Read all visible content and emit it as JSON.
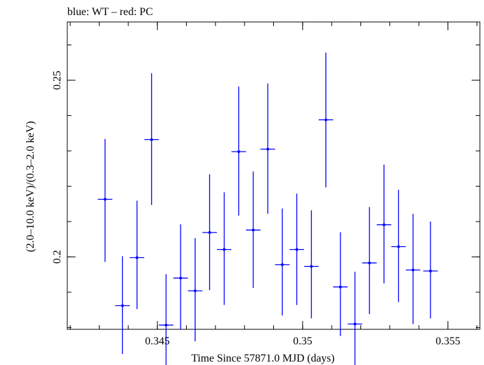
{
  "chart_data": {
    "type": "scatter",
    "title": "blue: WT – red: PC",
    "xlabel": "Time Since 57871.0 MJD (days)",
    "ylabel": "(2.0–10.0 keV)/(0.3–2.0 keV)",
    "xlim": [
      0.3419,
      0.3561
    ],
    "ylim": [
      0.1795,
      0.2665
    ],
    "xticks": [
      {
        "value": 0.345,
        "label": "0.345"
      },
      {
        "value": 0.35,
        "label": "0.35"
      },
      {
        "value": 0.355,
        "label": "0.355"
      }
    ],
    "yticks": [
      {
        "value": 0.2,
        "label": "0.2"
      },
      {
        "value": 0.25,
        "label": "0.25"
      }
    ],
    "grid": false,
    "series": [
      {
        "color": "#0000ff",
        "points": [
          {
            "x": 0.3432,
            "xerr": 0.00025,
            "y": 0.2163,
            "ylo": 0.1986,
            "yhi": 0.2334
          },
          {
            "x": 0.3438,
            "xerr": 0.00025,
            "y": 0.1862,
            "ylo": 0.1725,
            "yhi": 0.2002
          },
          {
            "x": 0.3443,
            "xerr": 0.00025,
            "y": 0.1998,
            "ylo": 0.1852,
            "yhi": 0.2159
          },
          {
            "x": 0.3448,
            "xerr": 0.00025,
            "y": 0.2332,
            "ylo": 0.2147,
            "yhi": 0.252
          },
          {
            "x": 0.3453,
            "xerr": 0.00025,
            "y": 0.1807,
            "ylo": 0.1658,
            "yhi": 0.1951
          },
          {
            "x": 0.3458,
            "xerr": 0.00025,
            "y": 0.194,
            "ylo": 0.1795,
            "yhi": 0.2092
          },
          {
            "x": 0.3463,
            "xerr": 0.00025,
            "y": 0.1904,
            "ylo": 0.1761,
            "yhi": 0.2053
          },
          {
            "x": 0.3468,
            "xerr": 0.00025,
            "y": 0.2069,
            "ylo": 0.1906,
            "yhi": 0.2234
          },
          {
            "x": 0.3473,
            "xerr": 0.00025,
            "y": 0.2021,
            "ylo": 0.1864,
            "yhi": 0.2183
          },
          {
            "x": 0.3478,
            "xerr": 0.00025,
            "y": 0.2298,
            "ylo": 0.2117,
            "yhi": 0.2482
          },
          {
            "x": 0.3483,
            "xerr": 0.00025,
            "y": 0.2076,
            "ylo": 0.1912,
            "yhi": 0.2242
          },
          {
            "x": 0.3488,
            "xerr": 0.00025,
            "y": 0.2305,
            "ylo": 0.2122,
            "yhi": 0.2491
          },
          {
            "x": 0.3493,
            "xerr": 0.00025,
            "y": 0.1978,
            "ylo": 0.1834,
            "yhi": 0.2137
          },
          {
            "x": 0.3498,
            "xerr": 0.00025,
            "y": 0.2021,
            "ylo": 0.1864,
            "yhi": 0.2179
          },
          {
            "x": 0.3503,
            "xerr": 0.00025,
            "y": 0.1973,
            "ylo": 0.1826,
            "yhi": 0.2132
          },
          {
            "x": 0.3508,
            "xerr": 0.00025,
            "y": 0.2388,
            "ylo": 0.2197,
            "yhi": 0.2578
          },
          {
            "x": 0.3513,
            "xerr": 0.00025,
            "y": 0.1915,
            "ylo": 0.1776,
            "yhi": 0.207
          },
          {
            "x": 0.3518,
            "xerr": 0.00025,
            "y": 0.181,
            "ylo": 0.167,
            "yhi": 0.1958
          },
          {
            "x": 0.3523,
            "xerr": 0.00025,
            "y": 0.1983,
            "ylo": 0.1838,
            "yhi": 0.2141
          },
          {
            "x": 0.3528,
            "xerr": 0.00025,
            "y": 0.2091,
            "ylo": 0.1925,
            "yhi": 0.2261
          },
          {
            "x": 0.3533,
            "xerr": 0.00025,
            "y": 0.2029,
            "ylo": 0.1872,
            "yhi": 0.219
          },
          {
            "x": 0.3538,
            "xerr": 0.00025,
            "y": 0.1963,
            "ylo": 0.181,
            "yhi": 0.2122
          },
          {
            "x": 0.3544,
            "xerr": 0.00025,
            "y": 0.196,
            "ylo": 0.1826,
            "yhi": 0.21
          }
        ]
      }
    ]
  }
}
